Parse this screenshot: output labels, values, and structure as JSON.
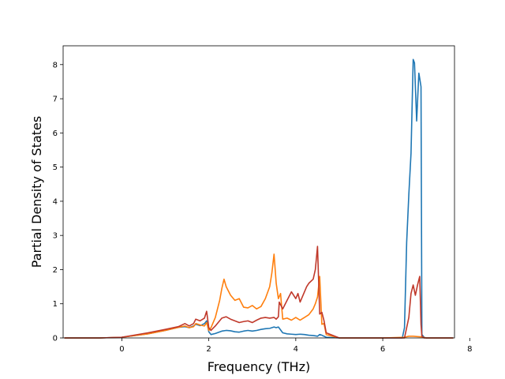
{
  "chart_data": {
    "type": "line",
    "title": "",
    "xlabel": "Frequency (THz)",
    "ylabel": "Partial Density of States",
    "xlim": [
      -1.35,
      7.65
    ],
    "ylim": [
      0,
      8.55
    ],
    "xticks": [
      0,
      2,
      4,
      6,
      8
    ],
    "yticks": [
      0,
      1,
      2,
      3,
      4,
      5,
      6,
      7,
      8
    ],
    "grid": false,
    "legend": "none",
    "series": [
      {
        "color": "#1f77b4",
        "x": [
          -1.32,
          -0.5,
          0.0,
          0.6,
          1.0,
          1.3,
          1.45,
          1.55,
          1.65,
          1.7,
          1.8,
          1.9,
          1.95,
          2.0,
          2.05,
          2.15,
          2.3,
          2.4,
          2.5,
          2.6,
          2.7,
          2.8,
          2.9,
          3.0,
          3.1,
          3.2,
          3.3,
          3.4,
          3.5,
          3.55,
          3.6,
          3.7,
          3.8,
          3.9,
          4.0,
          4.1,
          4.2,
          4.3,
          4.4,
          4.5,
          4.55,
          4.6,
          4.65,
          4.7,
          5.0,
          6.0,
          6.45,
          6.5,
          6.55,
          6.6,
          6.65,
          6.7,
          6.73,
          6.78,
          6.83,
          6.85,
          6.88,
          6.9,
          6.95,
          7.0,
          7.62
        ],
        "y": [
          0,
          0,
          0.02,
          0.12,
          0.22,
          0.31,
          0.33,
          0.3,
          0.35,
          0.4,
          0.36,
          0.42,
          0.5,
          0.18,
          0.1,
          0.13,
          0.2,
          0.22,
          0.21,
          0.18,
          0.17,
          0.2,
          0.22,
          0.2,
          0.22,
          0.25,
          0.27,
          0.28,
          0.32,
          0.3,
          0.32,
          0.15,
          0.12,
          0.11,
          0.1,
          0.11,
          0.1,
          0.08,
          0.07,
          0.05,
          0.1,
          0.08,
          0.05,
          0.02,
          0,
          0,
          0,
          0.3,
          2.8,
          4.2,
          5.4,
          8.15,
          8.05,
          6.35,
          7.75,
          7.6,
          7.35,
          0.1,
          0.02,
          0,
          0
        ]
      },
      {
        "color": "#ff7f0e",
        "x": [
          -1.32,
          -0.5,
          0.0,
          0.6,
          1.0,
          1.3,
          1.45,
          1.55,
          1.65,
          1.7,
          1.8,
          1.9,
          1.95,
          2.0,
          2.05,
          2.15,
          2.25,
          2.3,
          2.35,
          2.4,
          2.5,
          2.6,
          2.7,
          2.8,
          2.9,
          3.0,
          3.1,
          3.2,
          3.3,
          3.4,
          3.45,
          3.5,
          3.55,
          3.6,
          3.65,
          3.7,
          3.8,
          3.9,
          4.0,
          4.1,
          4.2,
          4.3,
          4.4,
          4.45,
          4.5,
          4.55,
          4.6,
          4.65,
          4.7,
          5.0,
          6.0,
          6.5,
          6.6,
          6.7,
          6.8,
          6.9,
          7.0,
          7.62
        ],
        "y": [
          0,
          0,
          0.02,
          0.12,
          0.22,
          0.31,
          0.35,
          0.3,
          0.33,
          0.42,
          0.38,
          0.35,
          0.45,
          0.22,
          0.3,
          0.6,
          1.1,
          1.45,
          1.72,
          1.5,
          1.25,
          1.1,
          1.15,
          0.9,
          0.88,
          0.95,
          0.85,
          0.92,
          1.15,
          1.5,
          1.9,
          2.45,
          1.6,
          1.15,
          1.3,
          0.55,
          0.58,
          0.52,
          0.6,
          0.52,
          0.6,
          0.68,
          0.85,
          1.0,
          1.2,
          1.8,
          0.4,
          0.42,
          0.1,
          0,
          0,
          0.02,
          0.05,
          0.05,
          0.04,
          0.03,
          0,
          0
        ]
      },
      {
        "color": "#c0392b",
        "x": [
          -1.32,
          -0.5,
          0.0,
          0.6,
          1.0,
          1.3,
          1.45,
          1.55,
          1.65,
          1.7,
          1.8,
          1.9,
          1.95,
          2.0,
          2.05,
          2.15,
          2.3,
          2.4,
          2.5,
          2.6,
          2.7,
          2.8,
          2.9,
          3.0,
          3.1,
          3.2,
          3.3,
          3.4,
          3.5,
          3.55,
          3.6,
          3.62,
          3.7,
          3.8,
          3.9,
          4.0,
          4.05,
          4.1,
          4.2,
          4.25,
          4.3,
          4.4,
          4.45,
          4.5,
          4.55,
          4.6,
          4.65,
          4.7,
          5.0,
          6.0,
          6.5,
          6.6,
          6.65,
          6.7,
          6.75,
          6.8,
          6.85,
          6.88,
          6.9,
          6.95,
          7.0,
          7.62
        ],
        "y": [
          0,
          0,
          0.02,
          0.15,
          0.25,
          0.33,
          0.42,
          0.35,
          0.42,
          0.55,
          0.5,
          0.58,
          0.78,
          0.3,
          0.22,
          0.35,
          0.58,
          0.62,
          0.55,
          0.5,
          0.45,
          0.48,
          0.5,
          0.45,
          0.52,
          0.58,
          0.6,
          0.58,
          0.6,
          0.55,
          0.62,
          1.05,
          0.85,
          1.1,
          1.35,
          1.15,
          1.3,
          1.05,
          1.35,
          1.5,
          1.6,
          1.72,
          2.0,
          2.68,
          0.7,
          0.75,
          0.5,
          0.15,
          0,
          0,
          0,
          0.6,
          1.3,
          1.55,
          1.25,
          1.55,
          1.8,
          0.4,
          0.05,
          0,
          0,
          0
        ]
      }
    ]
  }
}
